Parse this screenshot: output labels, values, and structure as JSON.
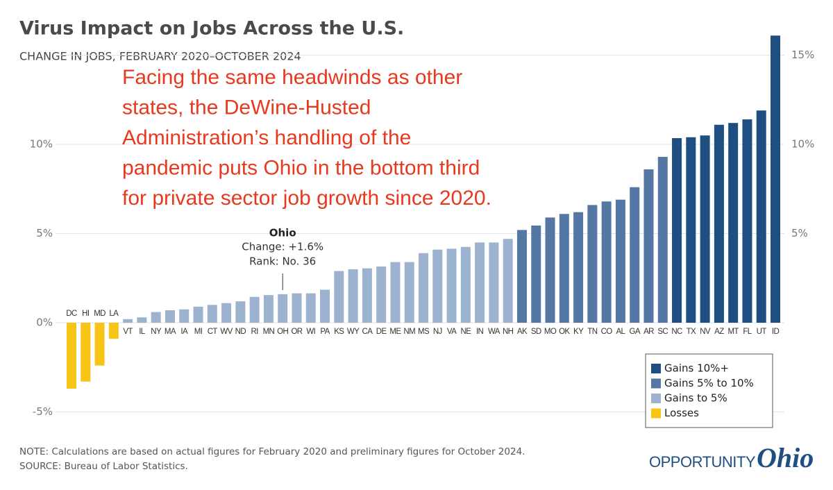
{
  "chart_data": {
    "type": "bar",
    "title": "Virus Impact on Jobs Across the U.S.",
    "subtitle": "CHANGE IN JOBS, FEBRUARY 2020–OCTOBER 2024",
    "annotation": [
      "Facing the same headwinds as other",
      "states, the DeWine-Husted",
      "Administration’s handling of the",
      "pandemic puts Ohio in the bottom third",
      "for private sector job growth since 2020."
    ],
    "callout": {
      "title": "Ohio",
      "lines": [
        "Change: +1.6%",
        "Rank: No. 36"
      ]
    },
    "note": "NOTE: Calculations are based on actual figures for February 2020 and preliminary figures for October 2024.",
    "source": "SOURCE: Bureau of Labor Statistics.",
    "logo": {
      "word": "OPPORTUNITY",
      "script": "Ohio"
    },
    "categories": [
      "DC",
      "HI",
      "MD",
      "LA",
      "VT",
      "IL",
      "NY",
      "MA",
      "IA",
      "MI",
      "CT",
      "WV",
      "ND",
      "RI",
      "MN",
      "OH",
      "OR",
      "WI",
      "PA",
      "KS",
      "WY",
      "CA",
      "DE",
      "ME",
      "NM",
      "MS",
      "NJ",
      "VA",
      "NE",
      "IN",
      "WA",
      "NH",
      "AK",
      "SD",
      "MO",
      "OK",
      "KY",
      "TN",
      "CO",
      "AL",
      "GA",
      "AR",
      "SC",
      "NC",
      "TX",
      "NV",
      "AZ",
      "MT",
      "FL",
      "UT",
      "ID"
    ],
    "series": [
      {
        "name": "Gains 10%+",
        "color": "#1f4f80",
        "values": [
          null,
          null,
          null,
          null,
          null,
          null,
          null,
          null,
          null,
          null,
          null,
          null,
          null,
          null,
          null,
          null,
          null,
          null,
          null,
          null,
          null,
          null,
          null,
          null,
          null,
          null,
          null,
          null,
          null,
          null,
          null,
          null,
          null,
          null,
          null,
          null,
          null,
          null,
          null,
          null,
          null,
          null,
          null,
          10.35,
          10.4,
          10.5,
          11.1,
          11.2,
          11.4,
          11.9,
          16.1
        ]
      },
      {
        "name": "Gains 5% to 10%",
        "color": "#5577a4",
        "values": [
          null,
          null,
          null,
          null,
          null,
          null,
          null,
          null,
          null,
          null,
          null,
          null,
          null,
          null,
          null,
          null,
          null,
          null,
          null,
          null,
          null,
          null,
          null,
          null,
          null,
          null,
          null,
          null,
          null,
          null,
          null,
          null,
          5.2,
          5.45,
          5.9,
          6.1,
          6.2,
          6.6,
          6.8,
          6.9,
          7.6,
          8.6,
          9.3,
          null,
          null,
          null,
          null,
          null,
          null,
          null,
          null
        ]
      },
      {
        "name": "Gains to 5%",
        "color": "#9db2cf",
        "values": [
          null,
          null,
          null,
          null,
          0.2,
          0.3,
          0.6,
          0.7,
          0.75,
          0.9,
          1.0,
          1.1,
          1.2,
          1.45,
          1.55,
          1.6,
          1.65,
          1.65,
          1.85,
          2.9,
          3.0,
          3.05,
          3.15,
          3.4,
          3.4,
          3.9,
          4.1,
          4.15,
          4.25,
          4.5,
          4.5,
          4.7,
          null,
          null,
          null,
          null,
          null,
          null,
          null,
          null,
          null,
          null,
          null,
          null,
          null,
          null,
          null,
          null,
          null,
          null,
          null
        ]
      },
      {
        "name": "Losses",
        "color": "#f7c516",
        "values": [
          -3.7,
          -3.3,
          -2.4,
          -0.9,
          null,
          null,
          null,
          null,
          null,
          null,
          null,
          null,
          null,
          null,
          null,
          null,
          null,
          null,
          null,
          null,
          null,
          null,
          null,
          null,
          null,
          null,
          null,
          null,
          null,
          null,
          null,
          null,
          null,
          null,
          null,
          null,
          null,
          null,
          null,
          null,
          null,
          null,
          null,
          null,
          null,
          null,
          null,
          null,
          null,
          null,
          null
        ]
      }
    ],
    "ylim": [
      -5.6,
      16.2
    ],
    "yticks": [
      {
        "value": -5,
        "label": "-5%"
      },
      {
        "value": 0,
        "label": "0%"
      },
      {
        "value": 5,
        "label": "5%"
      },
      {
        "value": 10,
        "label": "10%"
      }
    ],
    "y2lim": [
      -5.6,
      16.2
    ],
    "y2ticks": [
      {
        "value": 5,
        "label": "5%"
      },
      {
        "value": 10,
        "label": "10%"
      },
      {
        "value": 15,
        "label": "15%"
      }
    ],
    "grid": true,
    "legend": "bottom-right"
  }
}
